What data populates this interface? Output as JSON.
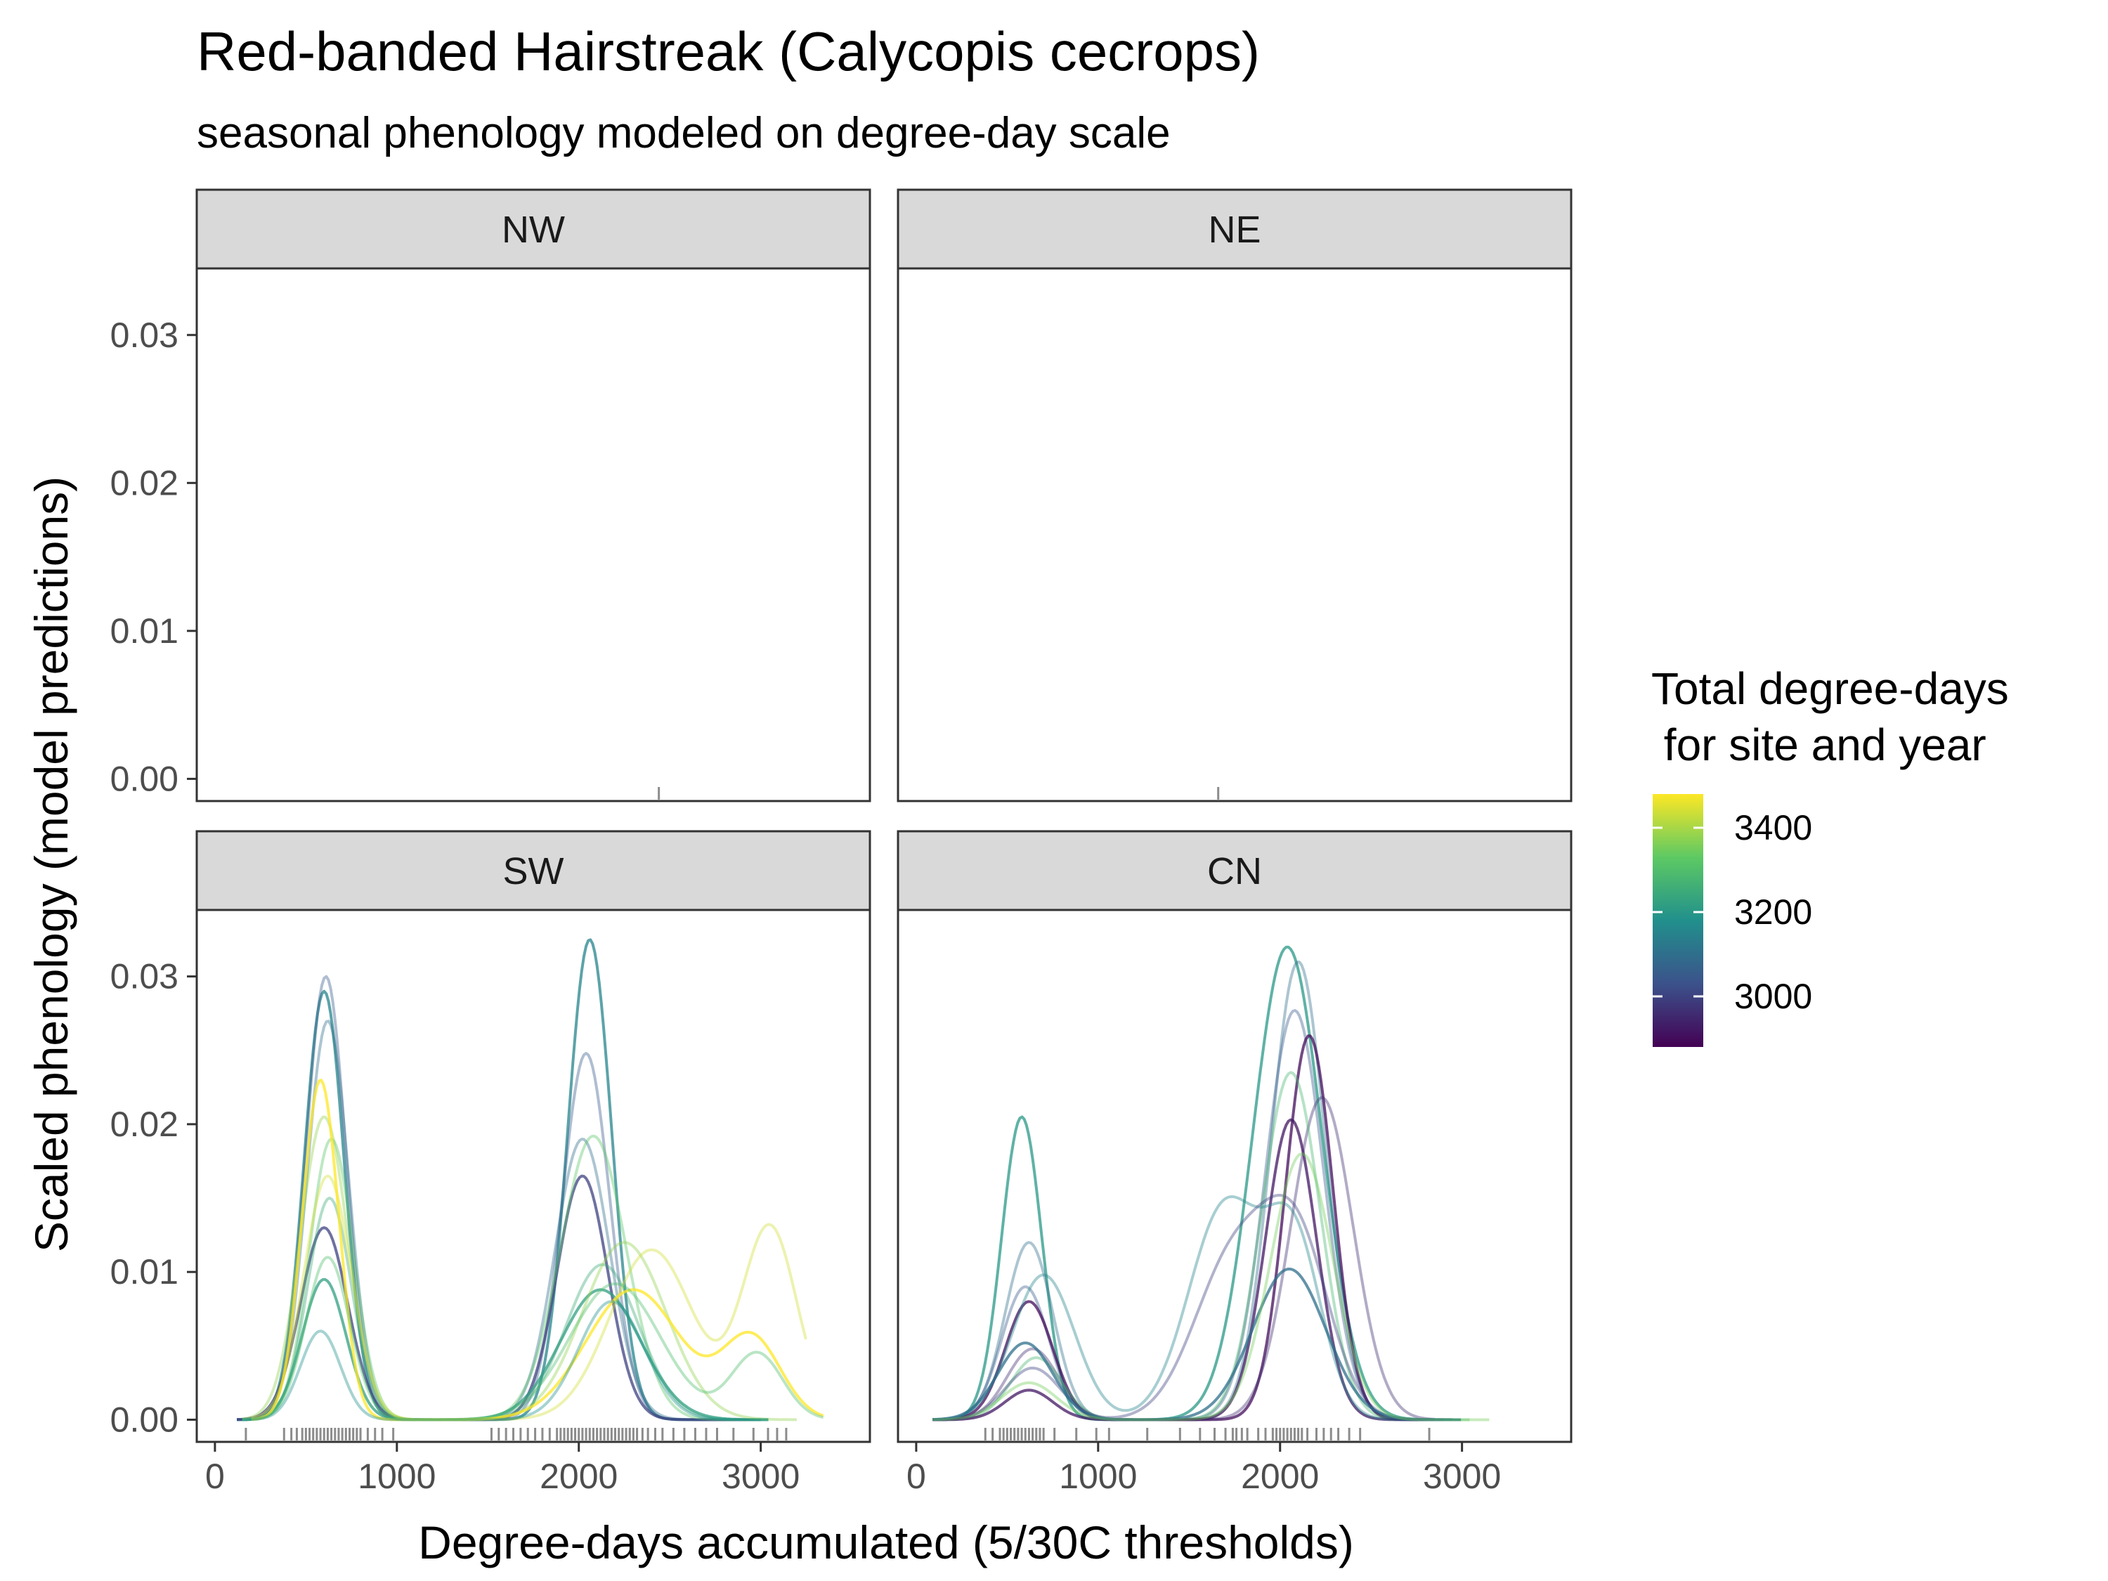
{
  "chart_data": {
    "type": "line",
    "title": "Red-banded Hairstreak (Calycopis cecrops)",
    "subtitle": "seasonal phenology modeled on degree-day scale",
    "xlabel": "Degree-days accumulated (5/30C thresholds)",
    "ylabel": "Scaled phenology (model predictions)",
    "xlim": [
      -100,
      3600
    ],
    "ylim": [
      -0.0015,
      0.0345
    ],
    "x_ticks": [
      0,
      1000,
      2000,
      3000
    ],
    "x_tick_labels": [
      "0",
      "1000",
      "2000",
      "3000"
    ],
    "y_ticks": [
      0,
      0.01,
      0.02,
      0.03
    ],
    "y_tick_labels": [
      "0.00",
      "0.01",
      "0.02",
      "0.03"
    ],
    "grid": false,
    "legend": {
      "title_line1": "Total degree-days",
      "title_line2": " for site and year",
      "placement": "right",
      "type": "colorbar",
      "range": [
        2880,
        3480
      ],
      "breaks": [
        3000,
        3200,
        3400
      ],
      "break_labels": [
        "3000",
        "3200",
        "3400"
      ],
      "palette": [
        "#440154",
        "#3b528b",
        "#21908c",
        "#5dc963",
        "#fde725"
      ]
    },
    "panels": [
      {
        "name": "NW",
        "curves": [],
        "rug": [
          2440
        ]
      },
      {
        "name": "NE",
        "curves": [],
        "rug": [
          1660
        ]
      },
      {
        "name": "SW",
        "curves": [
          {
            "total_dd": 3150,
            "peaks": [
              [
                600,
                0.029,
                110
              ],
              [
                2060,
                0.0325,
                120
              ]
            ],
            "range": [
              120,
              3000
            ]
          },
          {
            "total_dd": 3050,
            "peaks": [
              [
                610,
                0.03,
                110
              ],
              [
                2040,
                0.0248,
                130
              ]
            ],
            "range": [
              120,
              3000
            ]
          },
          {
            "total_dd": 3100,
            "peaks": [
              [
                620,
                0.027,
                115
              ],
              [
                2020,
                0.019,
                150
              ]
            ],
            "range": [
              120,
              3000
            ]
          },
          {
            "total_dd": 3000,
            "peaks": [
              [
                600,
                0.013,
                130
              ],
              [
                2020,
                0.0165,
                140
              ]
            ],
            "range": [
              120,
              3000
            ]
          },
          {
            "total_dd": 3320,
            "peaks": [
              [
                640,
                0.019,
                120
              ],
              [
                2080,
                0.0192,
                180
              ]
            ],
            "range": [
              150,
              3000
            ]
          },
          {
            "total_dd": 3250,
            "peaks": [
              [
                630,
                0.015,
                120
              ],
              [
                2130,
                0.0105,
                200
              ]
            ],
            "range": [
              150,
              3050
            ]
          },
          {
            "total_dd": 3220,
            "peaks": [
              [
                600,
                0.0095,
                120
              ],
              [
                2120,
                0.0088,
                220
              ]
            ],
            "range": [
              150,
              3050
            ]
          },
          {
            "total_dd": 3380,
            "peaks": [
              [
                600,
                0.0205,
                130
              ],
              [
                2250,
                0.012,
                230
              ]
            ],
            "range": [
              150,
              3200
            ]
          },
          {
            "total_dd": 3440,
            "peaks": [
              [
                620,
                0.0165,
                130
              ],
              [
                2400,
                0.0115,
                230
              ],
              [
                3050,
                0.013,
                150
              ]
            ],
            "range": [
              200,
              3250
            ]
          },
          {
            "total_dd": 3480,
            "peaks": [
              [
                580,
                0.023,
                100
              ],
              [
                2300,
                0.0088,
                260
              ],
              [
                2950,
                0.0055,
                160
              ]
            ],
            "range": [
              200,
              3350
            ]
          },
          {
            "total_dd": 3300,
            "peaks": [
              [
                620,
                0.011,
                120
              ],
              [
                2200,
                0.0092,
                250
              ],
              [
                2980,
                0.0045,
                140
              ]
            ],
            "range": [
              200,
              3350
            ]
          },
          {
            "total_dd": 3180,
            "peaks": [
              [
                580,
                0.006,
                110
              ],
              [
                2180,
                0.008,
                180
              ]
            ],
            "range": [
              150,
              3050
            ]
          }
        ],
        "rug": [
          170,
          380,
          420,
          450,
          480,
          500,
          520,
          540,
          560,
          580,
          600,
          620,
          640,
          660,
          680,
          700,
          720,
          740,
          760,
          780,
          800,
          840,
          880,
          920,
          980,
          1520,
          1560,
          1600,
          1640,
          1680,
          1720,
          1760,
          1800,
          1840,
          1880,
          1900,
          1920,
          1940,
          1960,
          1980,
          2000,
          2020,
          2040,
          2060,
          2080,
          2100,
          2120,
          2140,
          2160,
          2180,
          2200,
          2220,
          2240,
          2260,
          2280,
          2300,
          2320,
          2350,
          2380,
          2420,
          2460,
          2520,
          2580,
          2640,
          2700,
          2760,
          2850,
          2960,
          3040,
          3090,
          3140
        ]
      },
      {
        "name": "CN",
        "curves": [
          {
            "total_dd": 3200,
            "peaks": [
              [
                580,
                0.0205,
                110
              ],
              [
                2040,
                0.032,
                190
              ]
            ],
            "range": [
              90,
              3000
            ]
          },
          {
            "total_dd": 3100,
            "peaks": [
              [
                620,
                0.012,
                130
              ],
              [
                2100,
                0.031,
                150
              ]
            ],
            "range": [
              90,
              2950
            ]
          },
          {
            "total_dd": 3050,
            "peaks": [
              [
                600,
                0.009,
                130
              ],
              [
                2080,
                0.0277,
                160
              ]
            ],
            "range": [
              90,
              2950
            ]
          },
          {
            "total_dd": 2900,
            "peaks": [
              [
                620,
                0.008,
                130
              ],
              [
                2160,
                0.026,
                130
              ]
            ],
            "range": [
              90,
              2850
            ]
          },
          {
            "total_dd": 2960,
            "peaks": [
              [
                640,
                0.0048,
                140
              ],
              [
                2230,
                0.0218,
                170
              ]
            ],
            "range": [
              90,
              2850
            ]
          },
          {
            "total_dd": 3280,
            "peaks": [
              [
                660,
                0.0042,
                140
              ],
              [
                2060,
                0.0235,
                160
              ]
            ],
            "range": [
              90,
              3050
            ]
          },
          {
            "total_dd": 2920,
            "peaks": [
              [
                620,
                0.002,
                130
              ],
              [
                2060,
                0.0203,
                140
              ]
            ],
            "range": [
              90,
              2800
            ]
          },
          {
            "total_dd": 3150,
            "peaks": [
              [
                700,
                0.0098,
                170
              ],
              [
                1700,
                0.0145,
                200
              ],
              [
                2080,
                0.0115,
                150
              ]
            ],
            "range": [
              90,
              2950
            ]
          },
          {
            "total_dd": 3000,
            "peaks": [
              [
                640,
                0.0035,
                150
              ],
              [
                1750,
                0.011,
                220
              ],
              [
                2100,
                0.011,
                180
              ]
            ],
            "range": [
              90,
              2900
            ]
          },
          {
            "total_dd": 3100,
            "peaks": [
              [
                600,
                0.0052,
                150
              ],
              [
                2050,
                0.0102,
                200
              ]
            ],
            "range": [
              90,
              3000
            ]
          },
          {
            "total_dd": 3350,
            "peaks": [
              [
                620,
                0.0025,
                150
              ],
              [
                2120,
                0.018,
                170
              ]
            ],
            "range": [
              90,
              3150
            ]
          }
        ],
        "rug": [
          380,
          420,
          460,
          480,
          500,
          520,
          540,
          560,
          580,
          600,
          620,
          640,
          660,
          680,
          700,
          760,
          880,
          990,
          1060,
          1270,
          1450,
          1560,
          1640,
          1700,
          1740,
          1760,
          1790,
          1820,
          1880,
          1920,
          1960,
          1980,
          2000,
          2020,
          2040,
          2060,
          2080,
          2100,
          2120,
          2150,
          2200,
          2240,
          2280,
          2320,
          2380,
          2440,
          2820
        ]
      }
    ]
  }
}
